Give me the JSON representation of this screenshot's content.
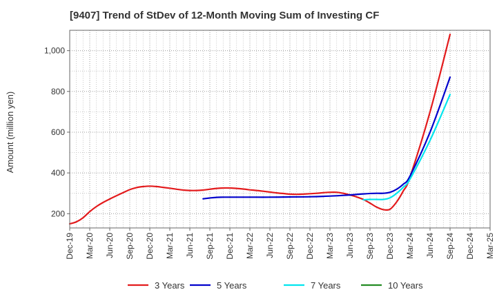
{
  "chart_data": {
    "type": "line",
    "title": "[9407]  Trend of StDev of 12-Month Moving Sum of Investing CF",
    "ylabel": "Amount (million yen)",
    "xlabel": "",
    "ylim": [
      130,
      1100
    ],
    "grid": true,
    "legend_position": "bottom",
    "y_ticks": [
      {
        "value": 200,
        "label": "200"
      },
      {
        "value": 400,
        "label": "400"
      },
      {
        "value": 600,
        "label": "600"
      },
      {
        "value": 800,
        "label": "800"
      },
      {
        "value": 1000,
        "label": "1,000"
      }
    ],
    "x_ticks": [
      "Dec-19",
      "Mar-20",
      "Jun-20",
      "Sep-20",
      "Dec-20",
      "Mar-21",
      "Jun-21",
      "Sep-21",
      "Dec-21",
      "Mar-22",
      "Jun-22",
      "Sep-22",
      "Dec-22",
      "Mar-23",
      "Jun-23",
      "Sep-23",
      "Dec-23",
      "Mar-24",
      "Jun-24",
      "Sep-24",
      "Dec-24",
      "Mar-25"
    ],
    "series": [
      {
        "name": "3 Years",
        "color": "#e31a1c",
        "points": [
          [
            "Dec-19",
            150
          ],
          [
            "Jan-20",
            160
          ],
          [
            "Feb-20",
            180
          ],
          [
            "Mar-20",
            210
          ],
          [
            "Apr-20",
            235
          ],
          [
            "May-20",
            255
          ],
          [
            "Jun-20",
            272
          ],
          [
            "Jul-20",
            288
          ],
          [
            "Aug-20",
            303
          ],
          [
            "Sep-20",
            318
          ],
          [
            "Oct-20",
            328
          ],
          [
            "Nov-20",
            333
          ],
          [
            "Dec-20",
            335
          ],
          [
            "Jan-21",
            333
          ],
          [
            "Feb-21",
            329
          ],
          [
            "Mar-21",
            325
          ],
          [
            "Apr-21",
            320
          ],
          [
            "May-21",
            316
          ],
          [
            "Jun-21",
            314
          ],
          [
            "Jul-21",
            314
          ],
          [
            "Aug-21",
            316
          ],
          [
            "Sep-21",
            320
          ],
          [
            "Oct-21",
            324
          ],
          [
            "Nov-21",
            326
          ],
          [
            "Dec-21",
            326
          ],
          [
            "Jan-22",
            324
          ],
          [
            "Feb-22",
            321
          ],
          [
            "Mar-22",
            317
          ],
          [
            "Apr-22",
            314
          ],
          [
            "May-22",
            310
          ],
          [
            "Jun-22",
            306
          ],
          [
            "Jul-22",
            302
          ],
          [
            "Aug-22",
            299
          ],
          [
            "Sep-22",
            296
          ],
          [
            "Oct-22",
            295
          ],
          [
            "Nov-22",
            296
          ],
          [
            "Dec-22",
            298
          ],
          [
            "Jan-23",
            300
          ],
          [
            "Feb-23",
            303
          ],
          [
            "Mar-23",
            305
          ],
          [
            "Apr-23",
            305
          ],
          [
            "May-23",
            300
          ],
          [
            "Jun-23",
            292
          ],
          [
            "Jul-23",
            282
          ],
          [
            "Aug-23",
            270
          ],
          [
            "Sep-23",
            252
          ],
          [
            "Oct-23",
            232
          ],
          [
            "Nov-23",
            220
          ],
          [
            "Dec-23",
            222
          ],
          [
            "Jan-24",
            258
          ],
          [
            "Feb-24",
            312
          ],
          [
            "Mar-24",
            380
          ],
          [
            "Jun-24",
            700
          ],
          [
            "Sep-24",
            1080
          ]
        ]
      },
      {
        "name": "5 Years",
        "color": "#0000cc",
        "points": [
          [
            "Aug-21",
            273
          ],
          [
            "Sep-21",
            277
          ],
          [
            "Oct-21",
            280
          ],
          [
            "Nov-21",
            281
          ],
          [
            "Dec-21",
            281
          ],
          [
            "Mar-22",
            281
          ],
          [
            "Jun-22",
            281
          ],
          [
            "Sep-22",
            282
          ],
          [
            "Dec-22",
            283
          ],
          [
            "Feb-23",
            285
          ],
          [
            "Apr-23",
            288
          ],
          [
            "Jun-23",
            292
          ],
          [
            "Aug-23",
            297
          ],
          [
            "Oct-23",
            300
          ],
          [
            "Nov-23",
            300
          ],
          [
            "Dec-23",
            305
          ],
          [
            "Jan-24",
            320
          ],
          [
            "Feb-24",
            345
          ],
          [
            "Mar-24",
            385
          ],
          [
            "Jun-24",
            600
          ],
          [
            "Sep-24",
            870
          ]
        ]
      },
      {
        "name": "7 Years",
        "color": "#00e5ee",
        "points": [
          [
            "Aug-23",
            268
          ],
          [
            "Sep-23",
            270
          ],
          [
            "Oct-23",
            270
          ],
          [
            "Nov-23",
            270
          ],
          [
            "Dec-23",
            278
          ],
          [
            "Jan-24",
            300
          ],
          [
            "Feb-24",
            330
          ],
          [
            "Mar-24",
            370
          ],
          [
            "Jun-24",
            560
          ],
          [
            "Sep-24",
            785
          ]
        ]
      },
      {
        "name": "10 Years",
        "color": "#228b22",
        "points": []
      }
    ]
  }
}
